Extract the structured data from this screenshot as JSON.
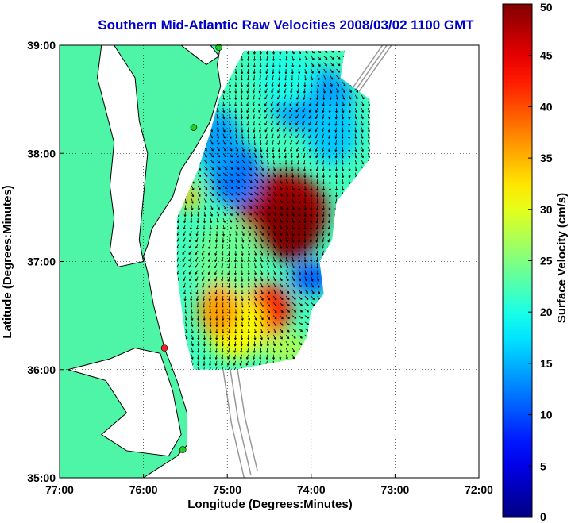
{
  "chart_data": {
    "type": "heatmap",
    "title": "Southern Mid-Atlantic Raw Velocities 2008/03/02 1100 GMT",
    "xlabel": "Longitude (Degrees:Minutes)",
    "ylabel": "Latitude (Degrees:Minutes)",
    "x_ticks": [
      {
        "value": -77,
        "label": "77:00"
      },
      {
        "value": -76,
        "label": "76:00"
      },
      {
        "value": -75,
        "label": "75:00"
      },
      {
        "value": -74,
        "label": "74:00"
      },
      {
        "value": -73,
        "label": "73:00"
      },
      {
        "value": -72,
        "label": "72:00"
      }
    ],
    "y_ticks": [
      {
        "value": 35,
        "label": "35:00"
      },
      {
        "value": 36,
        "label": "36:00"
      },
      {
        "value": 37,
        "label": "37:00"
      },
      {
        "value": 38,
        "label": "38:00"
      },
      {
        "value": 39,
        "label": "39:00"
      }
    ],
    "xlim": [
      -77,
      -72
    ],
    "ylim": [
      35,
      39
    ],
    "grid": true,
    "colorbar": {
      "label": "Surface Velocity (cm/s)",
      "range": [
        0,
        50
      ],
      "colormap": "jet",
      "ticks": [
        {
          "value": 0,
          "label": "0"
        },
        {
          "value": 5,
          "label": "5"
        },
        {
          "value": 10,
          "label": "10"
        },
        {
          "value": 15,
          "label": "15"
        },
        {
          "value": 20,
          "label": "20"
        },
        {
          "value": 25,
          "label": "25"
        },
        {
          "value": 30,
          "label": "30"
        },
        {
          "value": 35,
          "label": "35"
        },
        {
          "value": 40,
          "label": "40"
        },
        {
          "value": 45,
          "label": "45"
        },
        {
          "value": 50,
          "label": "50"
        }
      ]
    },
    "velocity_patches": [
      {
        "lon": -74.35,
        "lat": 37.45,
        "rlon": 0.55,
        "rlat": 0.38,
        "speed": 48
      },
      {
        "lon": -74.25,
        "lat": 37.3,
        "rlon": 0.35,
        "rlat": 0.3,
        "speed": 50
      },
      {
        "lon": -74.55,
        "lat": 36.55,
        "rlon": 0.32,
        "rlat": 0.25,
        "speed": 42
      },
      {
        "lon": -74.9,
        "lat": 37.8,
        "rlon": 0.3,
        "rlat": 0.3,
        "speed": 12
      },
      {
        "lon": -75.1,
        "lat": 38.1,
        "rlon": 0.25,
        "rlat": 0.3,
        "speed": 14
      },
      {
        "lon": -74.0,
        "lat": 38.5,
        "rlon": 0.5,
        "rlat": 0.3,
        "speed": 14
      },
      {
        "lon": -73.75,
        "lat": 38.2,
        "rlon": 0.3,
        "rlat": 0.3,
        "speed": 16
      },
      {
        "lon": -75.0,
        "lat": 37.0,
        "rlon": 0.4,
        "rlat": 0.4,
        "speed": 24
      },
      {
        "lon": -74.9,
        "lat": 36.4,
        "rlon": 0.35,
        "rlat": 0.3,
        "speed": 31
      },
      {
        "lon": -75.1,
        "lat": 36.55,
        "rlon": 0.25,
        "rlat": 0.25,
        "speed": 36
      },
      {
        "lon": -74.3,
        "lat": 38.7,
        "rlon": 0.35,
        "rlat": 0.25,
        "speed": 20
      },
      {
        "lon": -74.0,
        "lat": 36.85,
        "rlon": 0.25,
        "rlat": 0.15,
        "speed": 11
      },
      {
        "lon": -74.3,
        "lat": 36.2,
        "rlon": 0.3,
        "rlat": 0.15,
        "speed": 27
      },
      {
        "lon": -75.45,
        "lat": 37.6,
        "rlon": 0.12,
        "rlat": 0.12,
        "speed": 34
      }
    ],
    "background_speed": 22,
    "coverage_polygon": [
      [
        -74.8,
        38.95
      ],
      [
        -73.6,
        38.95
      ],
      [
        -73.65,
        38.7
      ],
      [
        -73.3,
        38.5
      ],
      [
        -73.3,
        37.95
      ],
      [
        -73.7,
        37.55
      ],
      [
        -73.75,
        37.2
      ],
      [
        -73.9,
        37.0
      ],
      [
        -73.85,
        36.7
      ],
      [
        -74.0,
        36.55
      ],
      [
        -74.05,
        36.3
      ],
      [
        -74.2,
        36.1
      ],
      [
        -74.9,
        36.0
      ],
      [
        -75.4,
        36.0
      ],
      [
        -75.5,
        36.3
      ],
      [
        -75.6,
        36.9
      ],
      [
        -75.6,
        37.4
      ],
      [
        -75.35,
        37.85
      ],
      [
        -75.2,
        38.2
      ],
      [
        -75.1,
        38.5
      ]
    ],
    "sites": [
      {
        "lon": -75.1,
        "lat": 38.98,
        "color": "#22cc22"
      },
      {
        "lon": -75.4,
        "lat": 38.24,
        "color": "#22cc22"
      },
      {
        "lon": -75.75,
        "lat": 36.2,
        "color": "#ee2222"
      },
      {
        "lon": -75.53,
        "lat": 35.26,
        "color": "#22cc22"
      }
    ],
    "colors": {
      "land": "#4ff5a6",
      "coast": "#000000",
      "bathymetry": "#999999",
      "title": "#0000cc"
    }
  }
}
